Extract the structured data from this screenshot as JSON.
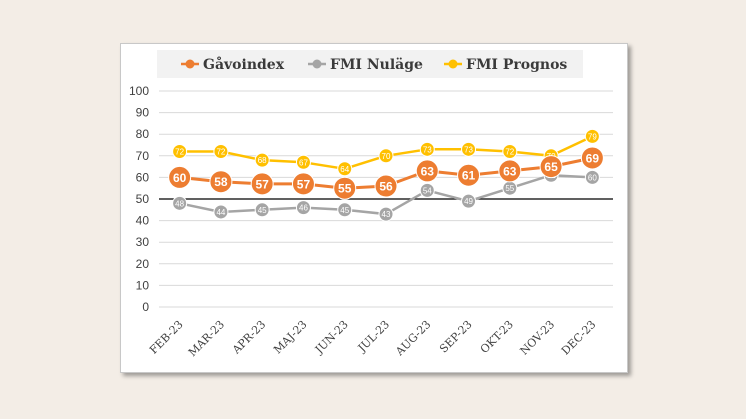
{
  "chart_data": {
    "type": "line",
    "title": "",
    "xlabel": "",
    "ylabel": "",
    "ylim": [
      0,
      100
    ],
    "yticks": [
      0,
      10,
      20,
      30,
      40,
      50,
      60,
      70,
      80,
      90,
      100
    ],
    "reference_line": 50,
    "grid": true,
    "legend": "top",
    "categories": [
      "FEB-23",
      "MAR-23",
      "APR-23",
      "MAJ-23",
      "JUN-23",
      "JUL-23",
      "AUG-23",
      "SEP-23",
      "OKT-23",
      "NOV-23",
      "DEC-23"
    ],
    "series": [
      {
        "name": "Gåvoindex",
        "color": "#ED7D31",
        "marker": "large",
        "values": [
          60,
          58,
          57,
          57,
          55,
          56,
          63,
          61,
          63,
          65,
          69
        ]
      },
      {
        "name": "FMI Nuläge",
        "color": "#A5A5A5",
        "marker": "small",
        "values": [
          48,
          44,
          45,
          46,
          45,
          43,
          54,
          49,
          55,
          61,
          60
        ]
      },
      {
        "name": "FMI Prognos",
        "color": "#FFC000",
        "marker": "small",
        "values": [
          72,
          72,
          68,
          67,
          64,
          70,
          73,
          73,
          72,
          70,
          79
        ]
      }
    ]
  }
}
